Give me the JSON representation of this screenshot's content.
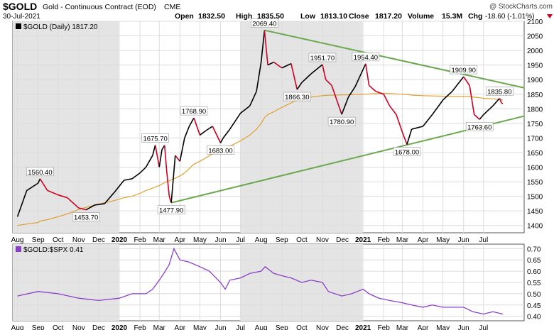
{
  "header": {
    "symbol": "$GOLD",
    "description": "Gold - Continuous Contract (EOD)",
    "exchange": "CME",
    "date": "30-Jul-2021",
    "open_label": "Open",
    "open": "1832.50",
    "high_label": "High",
    "high": "1835.50",
    "low_label": "Low",
    "low": "1813.10",
    "close_label": "Close",
    "close": "1817.20",
    "volume_label": "Volume",
    "volume": "15.3M",
    "chg_label": "Chg",
    "chg": "-18.60 (-1.01%)",
    "chg_arrow": "down-triangle-icon",
    "watermark": "@ StockCharts.com"
  },
  "colors": {
    "price_up": "#000000",
    "price_down": "#cc0022",
    "ma": "#e0a030",
    "trendline": "#6aa84f",
    "ratio": "#8a3fc8",
    "shade": "#e4e4e4",
    "grid": "#dcdcdc"
  },
  "chart_data": [
    {
      "type": "line",
      "legend": "$GOLD (Daily) 1817.20",
      "legend_placement": "top-left",
      "x": [
        "2019-08-01",
        "2019-08-15",
        "2019-09-01",
        "2019-09-04",
        "2019-09-15",
        "2019-10-01",
        "2019-10-15",
        "2019-11-01",
        "2019-11-12",
        "2019-11-25",
        "2019-12-10",
        "2019-12-25",
        "2020-01-08",
        "2020-01-20",
        "2020-02-01",
        "2020-02-10",
        "2020-02-20",
        "2020-02-24",
        "2020-03-01",
        "2020-03-05",
        "2020-03-09",
        "2020-03-12",
        "2020-03-16",
        "2020-03-19",
        "2020-03-25",
        "2020-04-01",
        "2020-04-08",
        "2020-04-15",
        "2020-04-22",
        "2020-05-01",
        "2020-05-10",
        "2020-05-20",
        "2020-06-01",
        "2020-06-05",
        "2020-06-15",
        "2020-07-01",
        "2020-07-15",
        "2020-07-25",
        "2020-08-01",
        "2020-08-06",
        "2020-08-11",
        "2020-08-20",
        "2020-09-01",
        "2020-09-15",
        "2020-09-24",
        "2020-10-01",
        "2020-10-15",
        "2020-11-01",
        "2020-11-06",
        "2020-11-15",
        "2020-11-30",
        "2020-12-10",
        "2020-12-20",
        "2021-01-05",
        "2021-01-10",
        "2021-01-20",
        "2021-02-01",
        "2021-02-10",
        "2021-02-20",
        "2021-03-01",
        "2021-03-08",
        "2021-03-15",
        "2021-04-01",
        "2021-04-15",
        "2021-05-01",
        "2021-05-15",
        "2021-06-01",
        "2021-06-10",
        "2021-06-17",
        "2021-06-25",
        "2021-07-01",
        "2021-07-15",
        "2021-07-25",
        "2021-07-28",
        "2021-07-30"
      ],
      "series": [
        {
          "values": [
            1430,
            1520,
            1545,
            1560,
            1520,
            1505,
            1495,
            1460,
            1453.7,
            1470,
            1475,
            1515,
            1555,
            1560,
            1580,
            1600,
            1640,
            1675.7,
            1600,
            1660,
            1675,
            1590,
            1500,
            1477.9,
            1640,
            1620,
            1700,
            1740,
            1768.9,
            1710,
            1725,
            1740,
            1683,
            1700,
            1730,
            1785,
            1810,
            1860,
            1960,
            2069.4,
            1950,
            1960,
            1940,
            1955,
            1866.3,
            1890,
            1920,
            1951.7,
            1900,
            1880,
            1780.9,
            1840,
            1875,
            1954.4,
            1880,
            1860,
            1850,
            1810,
            1780,
            1720,
            1678,
            1730,
            1740,
            1780,
            1830,
            1860,
            1909.9,
            1880,
            1780,
            1763.6,
            1780,
            1810,
            1835.8,
            1820,
            1817.2
          ]
        },
        {
          "values": [
            1400,
            1405,
            1410,
            1415,
            1420,
            1430,
            1440,
            1455,
            1462,
            1470,
            1478,
            1486,
            1495,
            1500,
            1510,
            1520,
            1528,
            1532,
            1537,
            1542,
            1547,
            1550,
            1553,
            1556,
            1562,
            1570,
            1580,
            1595,
            1610,
            1620,
            1632,
            1645,
            1656,
            1662,
            1672,
            1690,
            1710,
            1730,
            1750,
            1770,
            1780,
            1790,
            1805,
            1820,
            1830,
            1835,
            1840,
            1845,
            1846,
            1847,
            1848,
            1848,
            1849,
            1850,
            1851,
            1852,
            1853,
            1852,
            1851,
            1850,
            1849,
            1847,
            1845,
            1844,
            1843,
            1842,
            1842,
            1842,
            1840,
            1838,
            1836,
            1834,
            1832,
            1831,
            1830
          ]
        }
      ],
      "ylim": [
        1375,
        2100
      ],
      "yticks": [
        "1400",
        "1450",
        "1500",
        "1550",
        "1600",
        "1650",
        "1700",
        "1750",
        "1800",
        "1850",
        "1900",
        "1950",
        "2000",
        "2050",
        "2100"
      ],
      "xticks": [
        "Aug",
        "Sep",
        "Oct",
        "Nov",
        "Dec",
        "2020",
        "Feb",
        "Mar",
        "Apr",
        "May",
        "Jun",
        "Jul",
        "Aug",
        "Sep",
        "Oct",
        "Nov",
        "Dec",
        "2021",
        "Feb",
        "Mar",
        "Apr",
        "May",
        "Jun",
        "Jul"
      ],
      "annotations": [
        {
          "label": "1560.40",
          "x": "2019-09-04",
          "y": 1560.4
        },
        {
          "label": "1453.70",
          "x": "2019-11-12",
          "y": 1453.7
        },
        {
          "label": "1675.70",
          "x": "2020-02-24",
          "y": 1675.7
        },
        {
          "label": "1477.90",
          "x": "2020-03-19",
          "y": 1477.9
        },
        {
          "label": "1768.90",
          "x": "2020-04-22",
          "y": 1768.9
        },
        {
          "label": "1683.00",
          "x": "2020-06-01",
          "y": 1683
        },
        {
          "label": "2069.40",
          "x": "2020-08-06",
          "y": 2069.4
        },
        {
          "label": "1866.30",
          "x": "2020-09-24",
          "y": 1866.3
        },
        {
          "label": "1951.70",
          "x": "2020-11-01",
          "y": 1951.7
        },
        {
          "label": "1780.90",
          "x": "2020-11-30",
          "y": 1780.9
        },
        {
          "label": "1954.40",
          "x": "2021-01-05",
          "y": 1954.4
        },
        {
          "label": "1678.00",
          "x": "2021-03-08",
          "y": 1678
        },
        {
          "label": "1909.90",
          "x": "2021-06-01",
          "y": 1909.9
        },
        {
          "label": "1763.60",
          "x": "2021-06-25",
          "y": 1763.6
        },
        {
          "label": "1835.80",
          "x": "2021-07-25",
          "y": 1835.8
        }
      ],
      "trendlines": [
        {
          "x": [
            "2020-08-06",
            "2021-08-31"
          ],
          "y": [
            2069.4,
            1872
          ]
        },
        {
          "x": [
            "2020-03-19",
            "2021-08-31"
          ],
          "y": [
            1477.9,
            1775
          ]
        }
      ],
      "shaded_periods": [
        [
          "2019-07-25",
          "2019-12-31"
        ],
        [
          "2020-07-01",
          "2020-12-31"
        ]
      ],
      "grid": true
    },
    {
      "type": "line",
      "legend": "$GOLD:$SPX 0.41",
      "legend_placement": "top-left",
      "x": [
        "2019-08-01",
        "2019-09-01",
        "2019-10-01",
        "2019-11-01",
        "2019-12-01",
        "2020-01-01",
        "2020-01-20",
        "2020-02-10",
        "2020-02-20",
        "2020-03-01",
        "2020-03-10",
        "2020-03-16",
        "2020-03-23",
        "2020-04-01",
        "2020-04-15",
        "2020-05-01",
        "2020-05-15",
        "2020-06-01",
        "2020-06-08",
        "2020-06-15",
        "2020-07-01",
        "2020-07-15",
        "2020-08-01",
        "2020-08-07",
        "2020-08-20",
        "2020-09-01",
        "2020-09-15",
        "2020-10-01",
        "2020-10-15",
        "2020-11-01",
        "2020-11-10",
        "2020-11-30",
        "2020-12-15",
        "2021-01-01",
        "2021-01-10",
        "2021-01-25",
        "2021-02-10",
        "2021-03-01",
        "2021-03-15",
        "2021-04-01",
        "2021-04-15",
        "2021-05-01",
        "2021-05-15",
        "2021-06-01",
        "2021-06-15",
        "2021-07-01",
        "2021-07-15",
        "2021-07-30"
      ],
      "series": [
        {
          "values": [
            0.49,
            0.51,
            0.5,
            0.48,
            0.47,
            0.48,
            0.5,
            0.5,
            0.52,
            0.56,
            0.6,
            0.63,
            0.7,
            0.65,
            0.64,
            0.62,
            0.6,
            0.55,
            0.52,
            0.56,
            0.57,
            0.59,
            0.6,
            0.62,
            0.59,
            0.58,
            0.57,
            0.55,
            0.56,
            0.55,
            0.51,
            0.49,
            0.5,
            0.52,
            0.5,
            0.48,
            0.47,
            0.46,
            0.45,
            0.44,
            0.45,
            0.44,
            0.44,
            0.44,
            0.42,
            0.41,
            0.42,
            0.41
          ]
        }
      ],
      "ylim": [
        0.38,
        0.72
      ],
      "yticks": [
        "0.40",
        "0.45",
        "0.50",
        "0.55",
        "0.60",
        "0.65",
        "0.70"
      ],
      "xticks": [
        "Aug",
        "Sep",
        "Oct",
        "Nov",
        "Dec",
        "2020",
        "Feb",
        "Mar",
        "Apr",
        "May",
        "Jun",
        "Jul",
        "Aug",
        "Sep",
        "Oct",
        "Nov",
        "Dec",
        "2021",
        "Feb",
        "Mar",
        "Apr",
        "May",
        "Jun",
        "Jul"
      ],
      "shaded_periods": [
        [
          "2019-07-25",
          "2019-12-31"
        ],
        [
          "2020-07-01",
          "2020-12-31"
        ]
      ],
      "grid": true
    }
  ]
}
